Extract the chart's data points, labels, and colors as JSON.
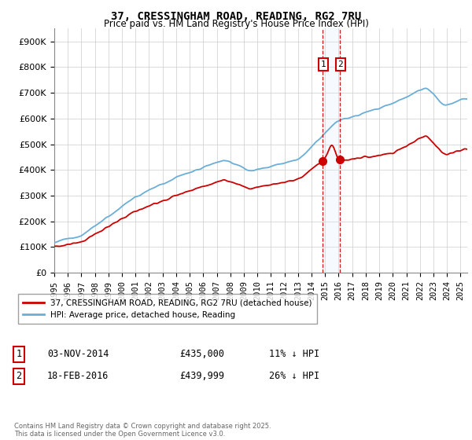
{
  "title": "37, CRESSINGHAM ROAD, READING, RG2 7RU",
  "subtitle": "Price paid vs. HM Land Registry's House Price Index (HPI)",
  "ylim": [
    0,
    950000
  ],
  "yticks": [
    0,
    100000,
    200000,
    300000,
    400000,
    500000,
    600000,
    700000,
    800000,
    900000
  ],
  "ytick_labels": [
    "£0",
    "£100K",
    "£200K",
    "£300K",
    "£400K",
    "£500K",
    "£600K",
    "£700K",
    "£800K",
    "£900K"
  ],
  "hpi_color": "#6baed6",
  "price_color": "#cc0000",
  "vline_color": "#cc0000",
  "highlight_box_color": "#ddeeff",
  "t1_year": 2014.833,
  "t2_year": 2016.083,
  "t1_price": 435000,
  "t2_price": 439999,
  "legend_line1": "37, CRESSINGHAM ROAD, READING, RG2 7RU (detached house)",
  "legend_line2": "HPI: Average price, detached house, Reading",
  "label1_text": "1",
  "label2_text": "2",
  "row1_date": "03-NOV-2014",
  "row1_price": "£435,000",
  "row1_hpi": "11% ↓ HPI",
  "row2_date": "18-FEB-2016",
  "row2_price": "£439,999",
  "row2_hpi": "26% ↓ HPI",
  "footer": "Contains HM Land Registry data © Crown copyright and database right 2025.\nThis data is licensed under the Open Government Licence v3.0.",
  "background_color": "#ffffff",
  "grid_color": "#cccccc",
  "label_box_color": "#cc0000",
  "xlim_start": 1995.0,
  "xlim_end": 2025.5
}
